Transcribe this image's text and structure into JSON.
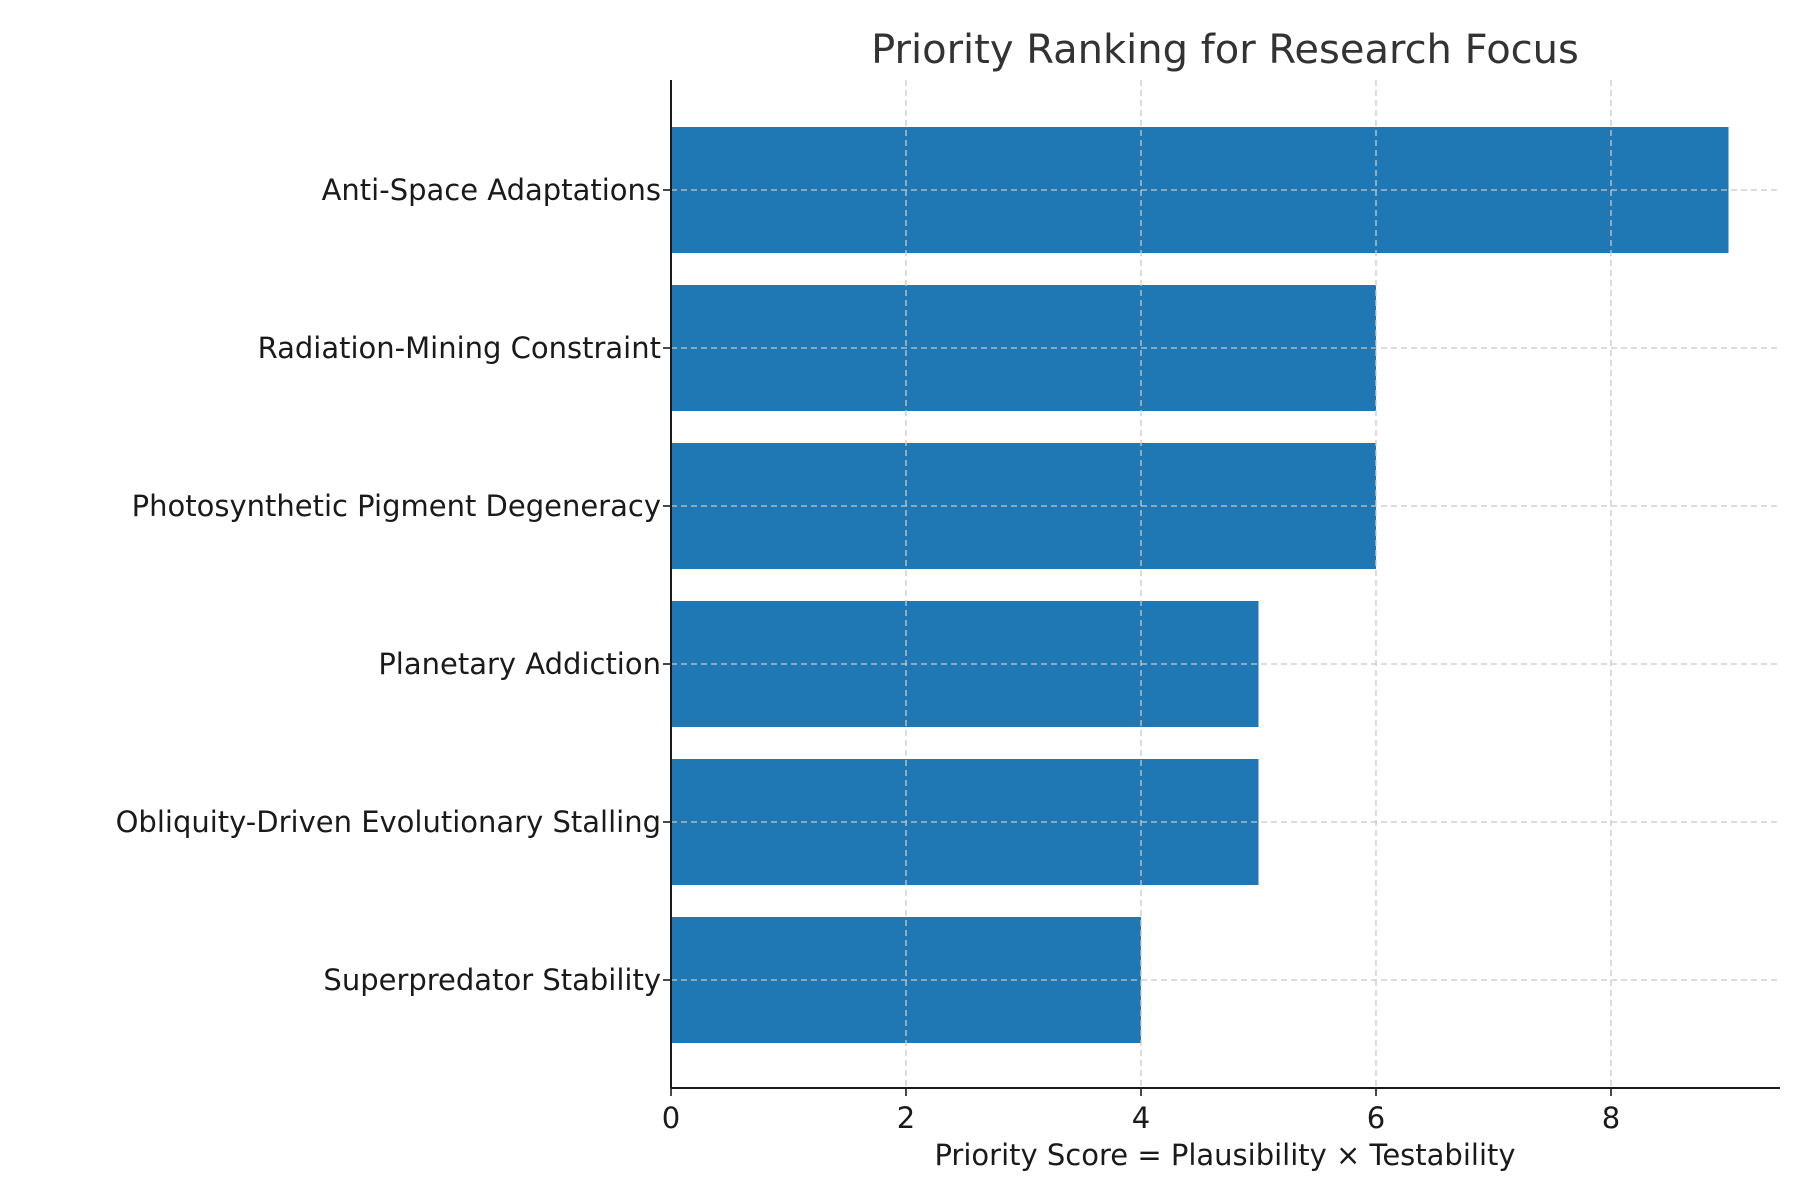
{
  "chart_data": {
    "type": "bar",
    "orientation": "horizontal",
    "title": "Priority Ranking for Research Focus",
    "xlabel": "Priority Score = Plausibility × Testability",
    "ylabel": "",
    "categories": [
      "Anti-Space Adaptations",
      "Radiation-Mining Constraint",
      "Photosynthetic Pigment Degeneracy",
      "Planetary Addiction",
      "Obliquity-Driven Evolutionary Stalling",
      "Superpredator Stability"
    ],
    "values": [
      9,
      6,
      6,
      5,
      5,
      4
    ],
    "xlim": [
      0,
      9.45
    ],
    "xticks": [
      0,
      2,
      4,
      6,
      8
    ],
    "grid": true,
    "bar_color": "#1f77b4"
  }
}
